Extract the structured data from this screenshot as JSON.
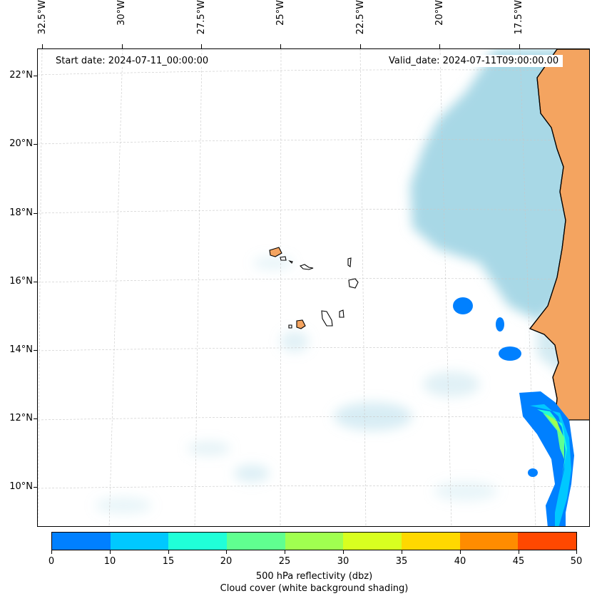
{
  "map": {
    "start_label": "Start date: 2024-07-11_00:00:00",
    "valid_label": "Valid_date: 2024-07-11T09:00:00.00",
    "longitude_labels": [
      "32.5°W",
      "30°W",
      "27.5°W",
      "25°W",
      "22.5°W",
      "20°W",
      "17.5°W"
    ],
    "latitude_labels": [
      "22°N",
      "20°N",
      "18°N",
      "16°N",
      "14°N",
      "12°N",
      "10°N"
    ],
    "colors": {
      "land": "#f4a460",
      "cloud": "#a8d8e6",
      "coastline": "#000000",
      "gridline": "#c8c8c8"
    }
  },
  "colorbar": {
    "tick_labels": [
      "0",
      "10",
      "15",
      "20",
      "25",
      "30",
      "35",
      "40",
      "45",
      "50"
    ],
    "colors": [
      "#0080ff",
      "#00c8ff",
      "#20ffd8",
      "#60ff90",
      "#a0ff50",
      "#d8ff20",
      "#ffd800",
      "#ff8c00",
      "#ff4800"
    ],
    "label_line1": "500 hPa reflectivity (dbz)",
    "label_line2": "Cloud cover (white background shading)"
  }
}
